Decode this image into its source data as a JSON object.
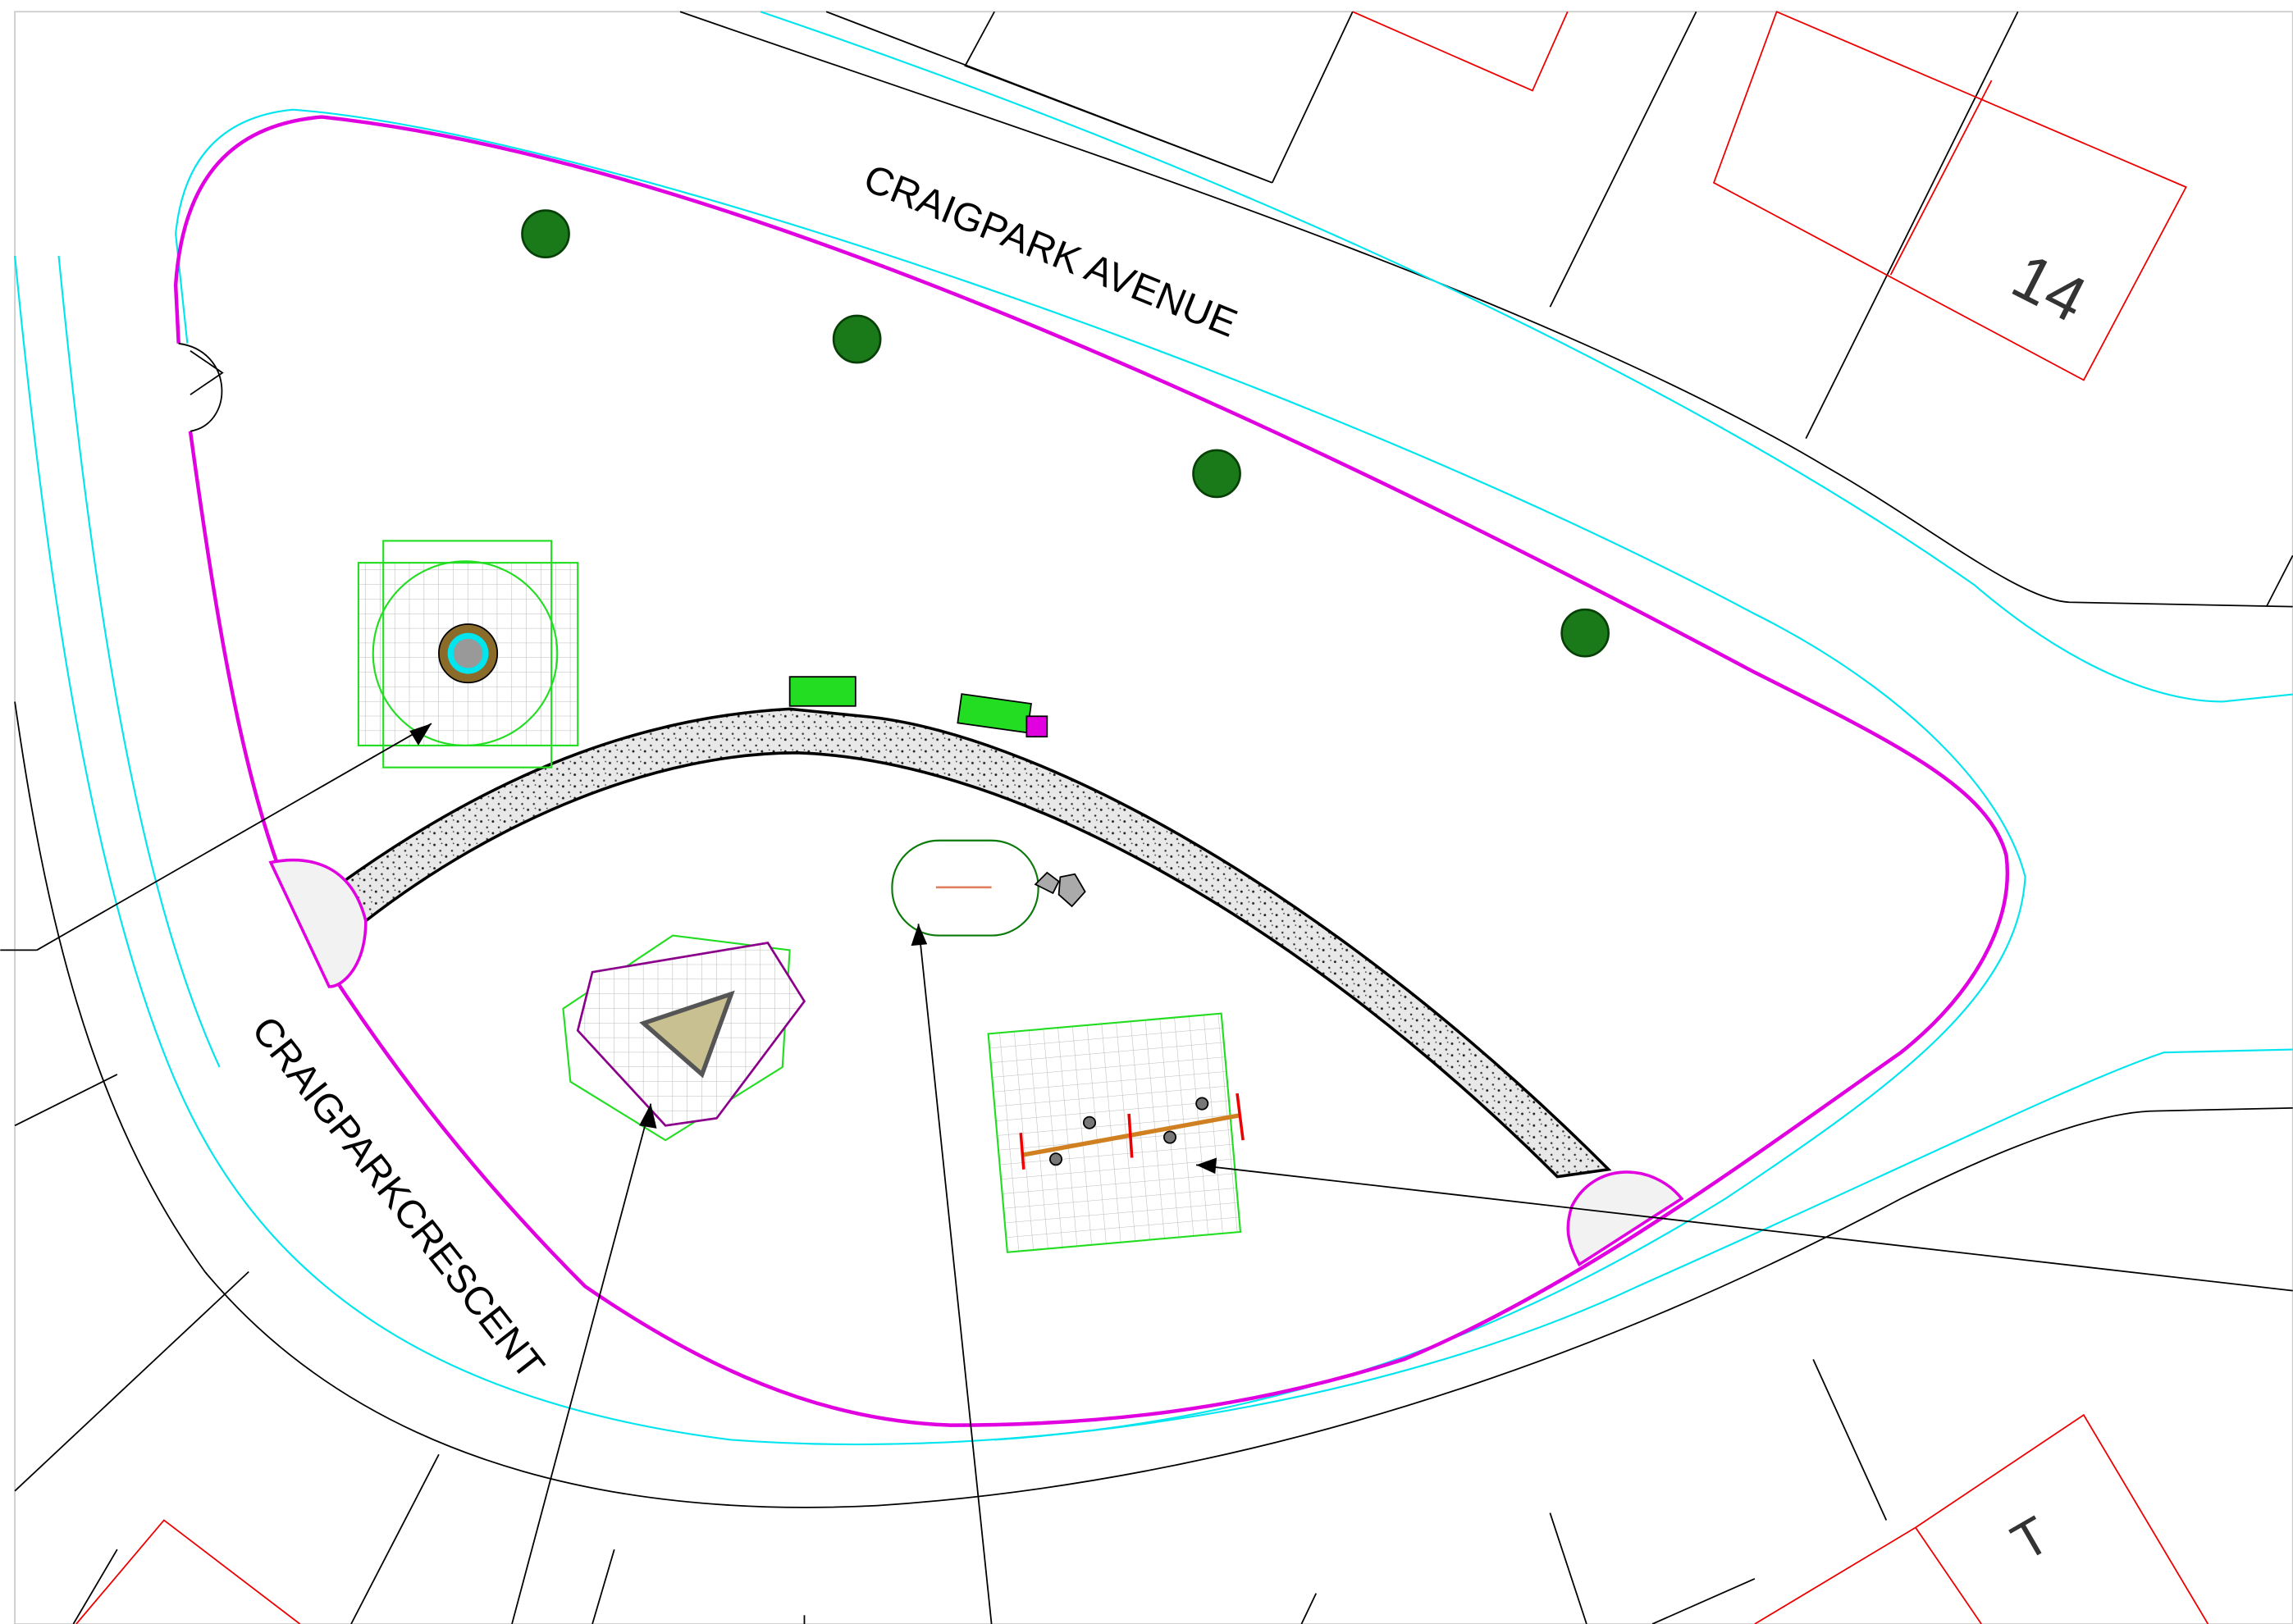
{
  "labels": {
    "street_avenue": "CRAIGPARK AVENUE",
    "street_crescent": "CRAIGPARKCRESCENT",
    "house_number_top": "14",
    "house_number_bottom": "T"
  }
}
